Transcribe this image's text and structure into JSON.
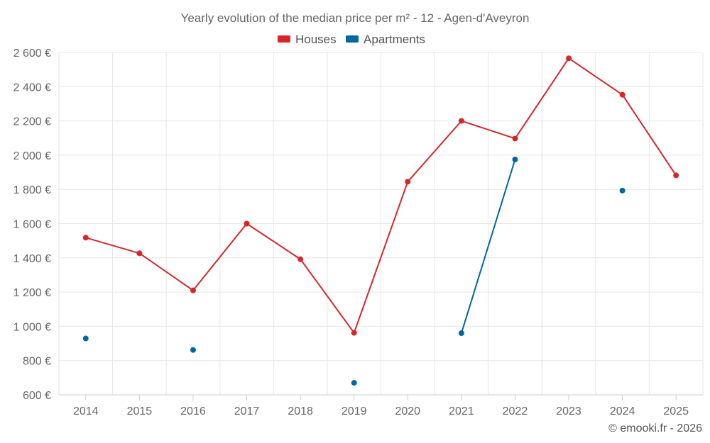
{
  "chart_data": {
    "type": "line",
    "title": "Yearly evolution of the median price per m² - 12 - Agen-d'Aveyron",
    "categories": [
      "2014",
      "2015",
      "2016",
      "2017",
      "2018",
      "2019",
      "2020",
      "2021",
      "2022",
      "2023",
      "2024",
      "2025"
    ],
    "y_ticks": [
      "600 €",
      "800 €",
      "1 000 €",
      "1 200 €",
      "1 400 €",
      "1 600 €",
      "1 800 €",
      "2 000 €",
      "2 200 €",
      "2 400 €",
      "2 600 €"
    ],
    "ylim": [
      600,
      2600
    ],
    "grid": true,
    "legend_position": "top-center",
    "series": [
      {
        "name": "Houses",
        "color": "#d62728",
        "values": [
          1518,
          1427,
          1210,
          1600,
          1392,
          962,
          1845,
          2200,
          2097,
          2566,
          2353,
          1882
        ]
      },
      {
        "name": "Apartments",
        "color": "#00689e",
        "values": [
          929,
          null,
          862,
          null,
          null,
          670,
          null,
          960,
          1975,
          null,
          1793,
          null
        ]
      }
    ]
  },
  "credit": "© emooki.fr - 2026"
}
